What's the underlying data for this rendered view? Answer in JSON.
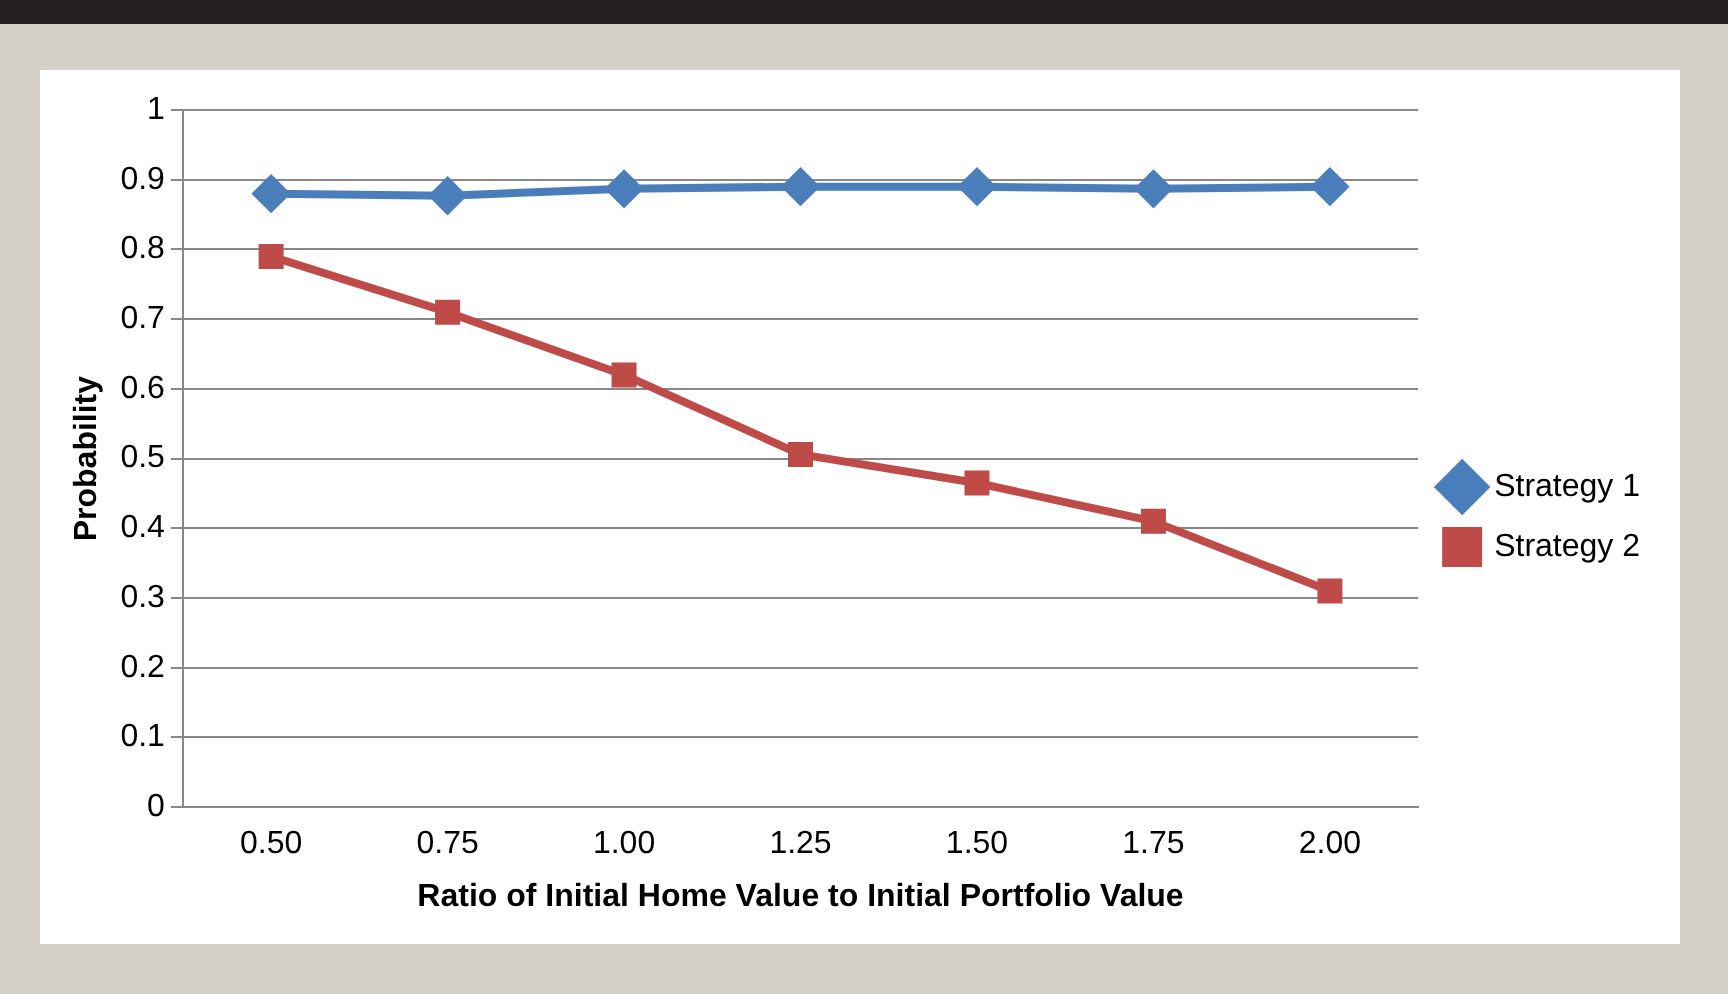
{
  "chart_data": {
    "type": "line",
    "xlabel": "Ratio of Initial Home Value to Initial Portfolio Value",
    "ylabel": "Probability",
    "categories": [
      "0.50",
      "0.75",
      "1.00",
      "1.25",
      "1.50",
      "1.75",
      "2.00"
    ],
    "series": [
      {
        "name": "Strategy 1",
        "color": "#4a7ebb",
        "marker": "diamond",
        "values": [
          0.88,
          0.877,
          0.887,
          0.89,
          0.89,
          0.887,
          0.89
        ]
      },
      {
        "name": "Strategy 2",
        "color": "#be4b48",
        "marker": "square",
        "values": [
          0.79,
          0.71,
          0.62,
          0.506,
          0.465,
          0.41,
          0.31
        ]
      }
    ],
    "ylim": [
      0,
      1
    ],
    "yticks": [
      0,
      0.1,
      0.2,
      0.3,
      0.4,
      0.5,
      0.6,
      0.7,
      0.8,
      0.9,
      1
    ],
    "grid": "y",
    "legend": "right",
    "line_style": "solid"
  }
}
